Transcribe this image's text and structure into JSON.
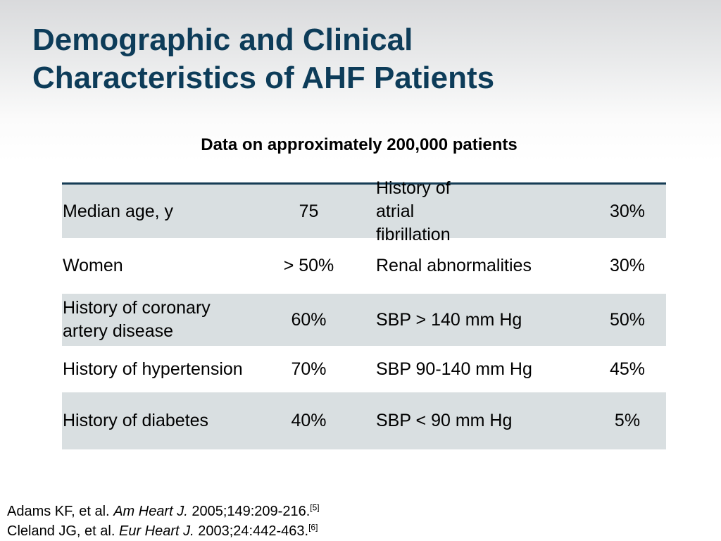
{
  "title": {
    "line1": "Demographic and Clinical",
    "line2": "Characteristics of AHF Patients"
  },
  "subtitle": "Data on approximately 200,000 patients",
  "table": {
    "rows": [
      {
        "label1": "Median age, y",
        "value1": "75",
        "label2": "History of atrial fibrillation",
        "value2": "30%"
      },
      {
        "label1": "Women",
        "value1": "> 50%",
        "label2": "Renal abnormalities",
        "value2": "30%"
      },
      {
        "label1": "History of coronary artery disease",
        "value1": "60%",
        "label2": "SBP > 140 mm Hg",
        "value2": "50%"
      },
      {
        "label1": "History of hypertension",
        "value1": "70%",
        "label2": "SBP 90-140 mm Hg",
        "value2": "45%"
      },
      {
        "label1": "History of diabetes",
        "value1": "40%",
        "label2": "SBP < 90 mm Hg",
        "value2": "5%"
      }
    ]
  },
  "references": [
    {
      "authors": "Adams KF, et al.",
      "journal": "Am Heart J.",
      "citation": "2005;149:209-216.",
      "ref_num": "[5]"
    },
    {
      "authors": "Cleland JG, et al.",
      "journal": "Eur Heart J.",
      "citation": "2003;24:442-463.",
      "ref_num": "[6]"
    }
  ],
  "colors": {
    "title": "#0d3c59",
    "table_rule": "#163c55",
    "row_shade": "#d9dfe1"
  }
}
